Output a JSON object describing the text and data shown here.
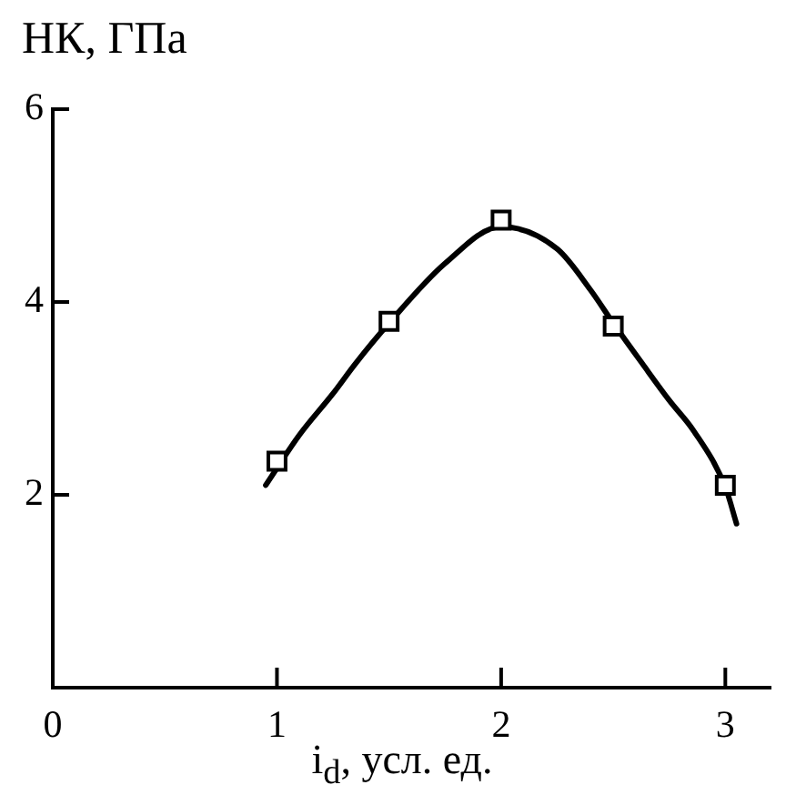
{
  "chart_data": {
    "type": "scatter",
    "ylabel": "НК, ГПа",
    "xlabel": "i$_{d}$, усл. ед.",
    "xlim": [
      0,
      3.2
    ],
    "xticks": [
      0,
      1,
      2,
      3
    ],
    "ylim": [
      0,
      6
    ],
    "yticks": [
      2,
      4,
      6
    ],
    "grid": false,
    "marker": "square",
    "series": [
      {
        "type": "line",
        "color": "#000000",
        "marker": "none",
        "x": [
          0.95,
          1.1,
          1.25,
          1.35,
          1.5,
          1.75,
          2.0,
          2.25,
          2.4,
          2.5,
          2.63,
          2.75,
          2.86,
          3.0,
          3.05
        ],
        "values": [
          2.1,
          2.62,
          3.05,
          3.36,
          3.78,
          4.4,
          4.78,
          4.55,
          4.12,
          3.78,
          3.36,
          2.98,
          2.66,
          2.08,
          1.7
        ]
      },
      {
        "type": "scatter",
        "color": "#000000",
        "x": [
          1,
          1.5,
          2,
          2.5,
          3
        ],
        "values": [
          2.35,
          3.8,
          4.85,
          3.75,
          2.1
        ]
      }
    ]
  }
}
